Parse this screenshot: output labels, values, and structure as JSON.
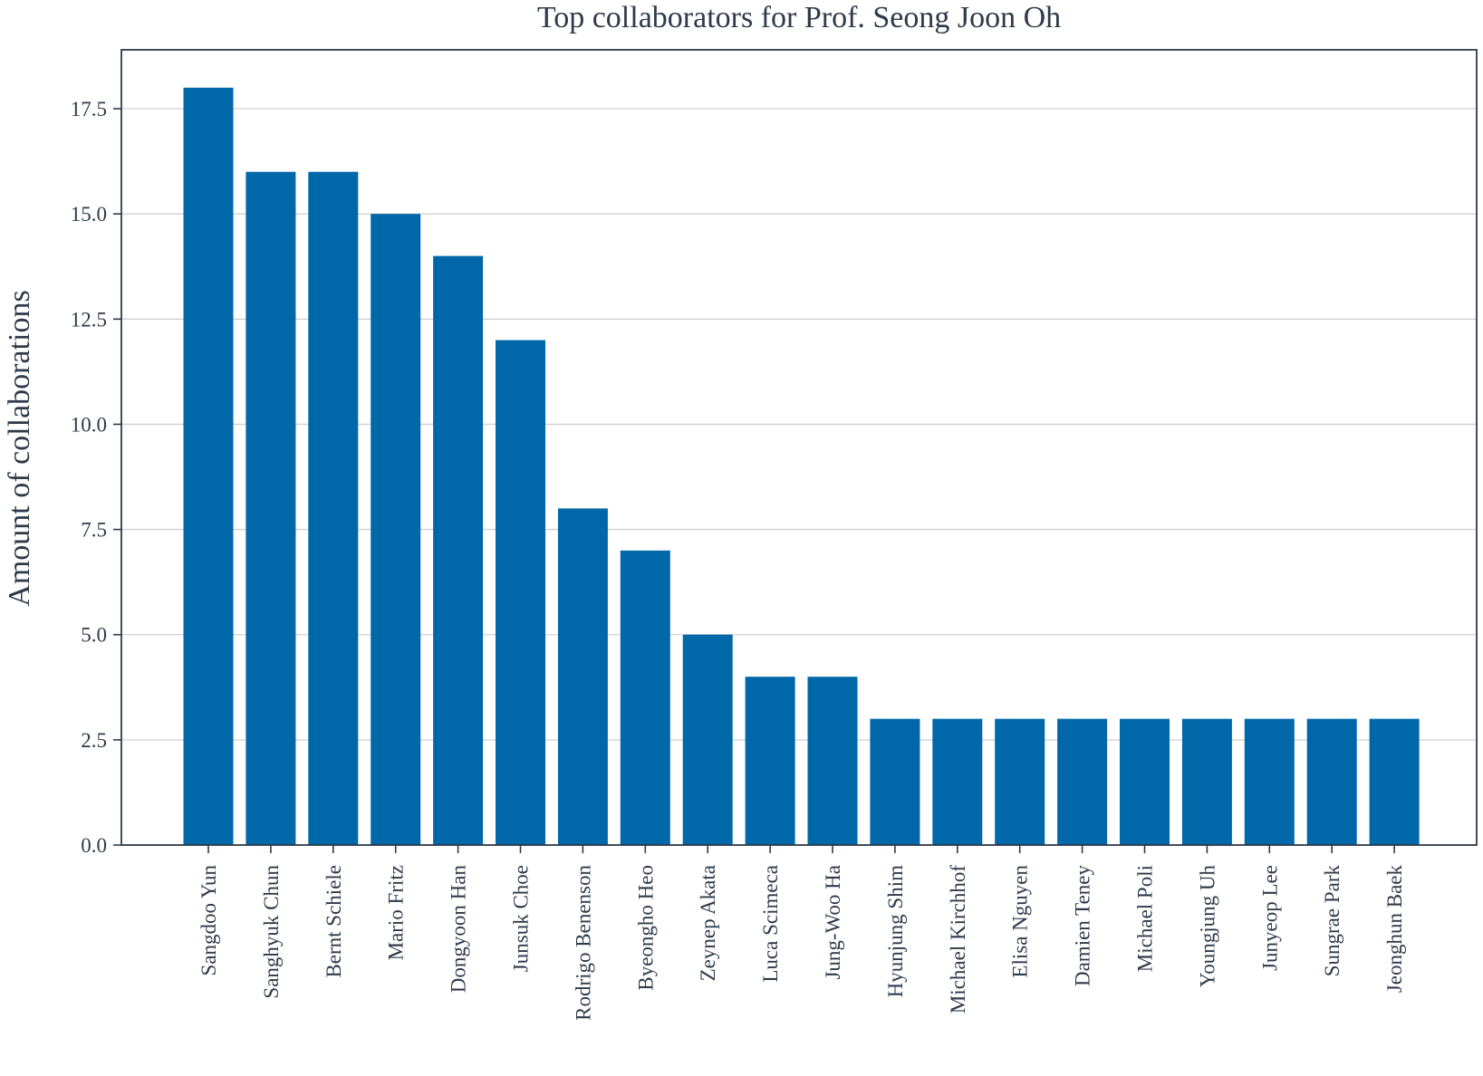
{
  "chart_data": {
    "type": "bar",
    "title": "Top collaborators for Prof. Seong Joon Oh",
    "xlabel": "",
    "ylabel": "Amount of collaborations",
    "categories": [
      "Sangdoo Yun",
      "Sanghyuk Chun",
      "Bernt Schiele",
      "Mario Fritz",
      "Dongyoon Han",
      "Junsuk Choe",
      "Rodrigo Benenson",
      "Byeongho Heo",
      "Zeynep Akata",
      "Luca Scimeca",
      "Jung-Woo Ha",
      "Hyunjung Shim",
      "Michael Kirchhof",
      "Elisa Nguyen",
      "Damien Teney",
      "Michael Poli",
      "Youngjung Uh",
      "Junyeop Lee",
      "Sungrae Park",
      "Jeonghun Baek"
    ],
    "values": [
      18,
      16,
      16,
      15,
      14,
      12,
      8,
      7,
      5,
      4,
      4,
      3,
      3,
      3,
      3,
      3,
      3,
      3,
      3,
      3
    ],
    "ylim": [
      0,
      18.9
    ],
    "yticks": [
      "0.0",
      "2.5",
      "5.0",
      "7.5",
      "10.0",
      "12.5",
      "15.0",
      "17.5"
    ],
    "grid": "horizontal",
    "bar_color": "#0068a9",
    "axis_color": "#2e3a4a",
    "grid_color": "#d0d0d0"
  }
}
